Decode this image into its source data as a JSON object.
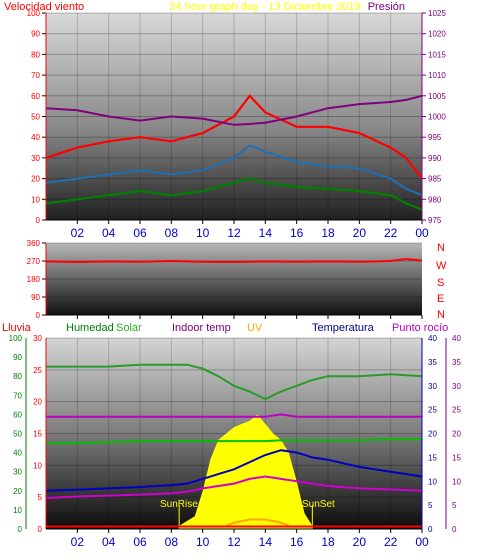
{
  "header": {
    "left_title": "Velocidad viento",
    "center_title": "24 hour graph day - 13 Diciembre 2019",
    "right_title": "Presión"
  },
  "legend": {
    "lluvia": "Lluvia",
    "humedad": "Humedad",
    "solar": "Solar",
    "indoor": "Indoor temp",
    "uv": "UV",
    "temperatura": "Temperatura",
    "rocio": "Punto rocío"
  },
  "compass": [
    "N",
    "W",
    "S",
    "E",
    "N"
  ],
  "annotations": {
    "sunrise": "SunRise",
    "sunset": "SunSet"
  },
  "colors": {
    "wind": "#ff0000",
    "gust_avg": "#1e6fb4",
    "wind_min": "#008000",
    "pressure": "#800080",
    "direction": "#ff0000",
    "humidity": "#2a9a2a",
    "solar": "#ffff00",
    "uv": "#ffa500",
    "indoor": "#c000c0",
    "temperature": "#0000c0",
    "dewpoint": "#800080",
    "rain": "#ff0000"
  },
  "chart_data": [
    {
      "type": "line",
      "title": "24 hour graph day - 13 Diciembre 2019",
      "x_ticks": [
        "02",
        "04",
        "06",
        "08",
        "10",
        "12",
        "14",
        "16",
        "18",
        "20",
        "22",
        "00"
      ],
      "x": [
        0,
        2,
        4,
        6,
        8,
        10,
        12,
        13,
        14,
        16,
        18,
        20,
        22,
        23,
        24
      ],
      "left_axis": {
        "label": "Velocidad viento",
        "ticks": [
          "0",
          "10",
          "20",
          "30",
          "40",
          "50",
          "60",
          "70",
          "80",
          "90",
          "100"
        ],
        "ylim": [
          0,
          100
        ]
      },
      "right_axis": {
        "label": "Presión",
        "ticks": [
          "975",
          "980",
          "985",
          "990",
          "995",
          "1000",
          "1005",
          "1010",
          "1015",
          "1020",
          "1025"
        ],
        "ylim": [
          975,
          1025
        ]
      },
      "series": [
        {
          "name": "Velocidad viento",
          "axis": "left",
          "values": [
            30,
            35,
            38,
            40,
            38,
            42,
            50,
            60,
            52,
            45,
            45,
            42,
            35,
            30,
            20
          ]
        },
        {
          "axis": "left",
          "values": [
            18,
            20,
            22,
            24,
            22,
            24,
            30,
            36,
            33,
            28,
            26,
            25,
            20,
            15,
            12
          ]
        },
        {
          "axis": "left",
          "values": [
            8,
            10,
            12,
            14,
            12,
            14,
            18,
            20,
            18,
            16,
            15,
            14,
            12,
            8,
            5
          ]
        },
        {
          "name": "Presión",
          "axis": "right",
          "values": [
            1002,
            1001.5,
            1000,
            999,
            1000,
            999.5,
            998,
            998.2,
            998.5,
            1000,
            1002,
            1003,
            1003.5,
            1004,
            1005
          ]
        }
      ]
    },
    {
      "type": "line",
      "x_ticks": [
        "02",
        "04",
        "06",
        "08",
        "10",
        "12",
        "14",
        "16",
        "18",
        "20",
        "22",
        "00"
      ],
      "x": [
        0,
        2,
        4,
        6,
        8,
        10,
        12,
        14,
        16,
        18,
        20,
        22,
        23,
        24
      ],
      "left_axis": {
        "ticks": [
          "0",
          "90",
          "180",
          "270",
          "360"
        ],
        "ylim": [
          0,
          360
        ]
      },
      "right_labels": [
        "N",
        "W",
        "S",
        "E",
        "N"
      ],
      "series": [
        {
          "axis": "left",
          "values": [
            268,
            265,
            268,
            266,
            270,
            266,
            265,
            268,
            266,
            268,
            266,
            270,
            280,
            272
          ]
        }
      ]
    },
    {
      "type": "line",
      "x_ticks": [
        "02",
        "04",
        "06",
        "08",
        "10",
        "12",
        "14",
        "16",
        "18",
        "20",
        "22",
        "00"
      ],
      "x": [
        0,
        2,
        4,
        6,
        8,
        9,
        10,
        11,
        12,
        13,
        14,
        15,
        16,
        17,
        18,
        20,
        22,
        24
      ],
      "axes": {
        "lluvia": {
          "ticks": [
            "0",
            "5",
            "10",
            "15",
            "20",
            "25",
            "30"
          ],
          "ylim": [
            0,
            30
          ]
        },
        "humedad": {
          "ticks": [
            "0",
            "10",
            "20",
            "30",
            "40",
            "50",
            "60",
            "70",
            "80",
            "90",
            "100"
          ],
          "ylim": [
            0,
            100
          ]
        },
        "temperatura": {
          "ticks": [
            "0",
            "5",
            "10",
            "15",
            "20",
            "25",
            "30",
            "35",
            "40"
          ],
          "ylim": [
            0,
            40
          ]
        },
        "rocio": {
          "ticks": [
            "0",
            "5",
            "10",
            "15",
            "20",
            "25",
            "30",
            "35",
            "40"
          ],
          "ylim": [
            0,
            40
          ]
        }
      },
      "series": [
        {
          "name": "Humedad",
          "axis": "humedad",
          "values": [
            85,
            85,
            85,
            86,
            86,
            86,
            84,
            80,
            75,
            72,
            68,
            72,
            75,
            78,
            80,
            80,
            81,
            80
          ]
        },
        {
          "name": "Indoor temp",
          "axis": "temperatura",
          "values": [
            23.5,
            23.5,
            23.5,
            23.5,
            23.5,
            23.5,
            23.5,
            23.5,
            23.5,
            23.5,
            23.5,
            24,
            23.5,
            23.5,
            23.5,
            23.5,
            23.5,
            23.5
          ]
        },
        {
          "name": "Solar",
          "axis": "humedad",
          "values": [
            45,
            45,
            45.5,
            46,
            46,
            46,
            46,
            46,
            46,
            46,
            46,
            46.5,
            46.5,
            46.5,
            46.5,
            46.5,
            47,
            47
          ]
        },
        {
          "name": "Temperatura",
          "axis": "temperatura",
          "values": [
            8,
            8.2,
            8.5,
            8.8,
            9.2,
            9.5,
            10.5,
            11.5,
            12.5,
            14,
            15.5,
            16.5,
            16,
            15,
            14.5,
            13,
            12,
            11
          ]
        },
        {
          "name": "Punto rocío",
          "axis": "rocio",
          "values": [
            6.5,
            6.8,
            7,
            7.2,
            7.5,
            7.8,
            8.5,
            9,
            9.5,
            10.5,
            11,
            10.5,
            10,
            9.5,
            9,
            8.5,
            8.3,
            8
          ]
        },
        {
          "name": "Lluvia",
          "axis": "lluvia",
          "values": [
            0.4,
            0.4,
            0.4,
            0.4,
            0.4,
            0.4,
            0.4,
            0.4,
            0.4,
            0.4,
            0.4,
            0.4,
            0.4,
            0.4,
            0.4,
            0.4,
            0.4,
            0.4
          ]
        }
      ],
      "solar_area": {
        "x": [
          8.5,
          9.5,
          10,
          10.5,
          11,
          11.5,
          12,
          12.5,
          13,
          13.5,
          14,
          14.5,
          15,
          15.5,
          16,
          16.5,
          17
        ],
        "values": [
          1,
          4,
          12,
          22,
          28,
          30,
          32,
          33,
          34,
          36,
          33,
          30,
          28,
          24,
          15,
          5,
          1
        ],
        "axis": "lluvia"
      },
      "uv": {
        "x": [
          11.5,
          12,
          13,
          14,
          15,
          15.5
        ],
        "values": [
          0.5,
          1,
          1.5,
          1.5,
          1,
          0.5
        ],
        "axis": "lluvia"
      },
      "annotations": [
        {
          "text": "SunRise",
          "x": 8.5
        },
        {
          "text": "SunSet",
          "x": 17
        }
      ]
    }
  ]
}
